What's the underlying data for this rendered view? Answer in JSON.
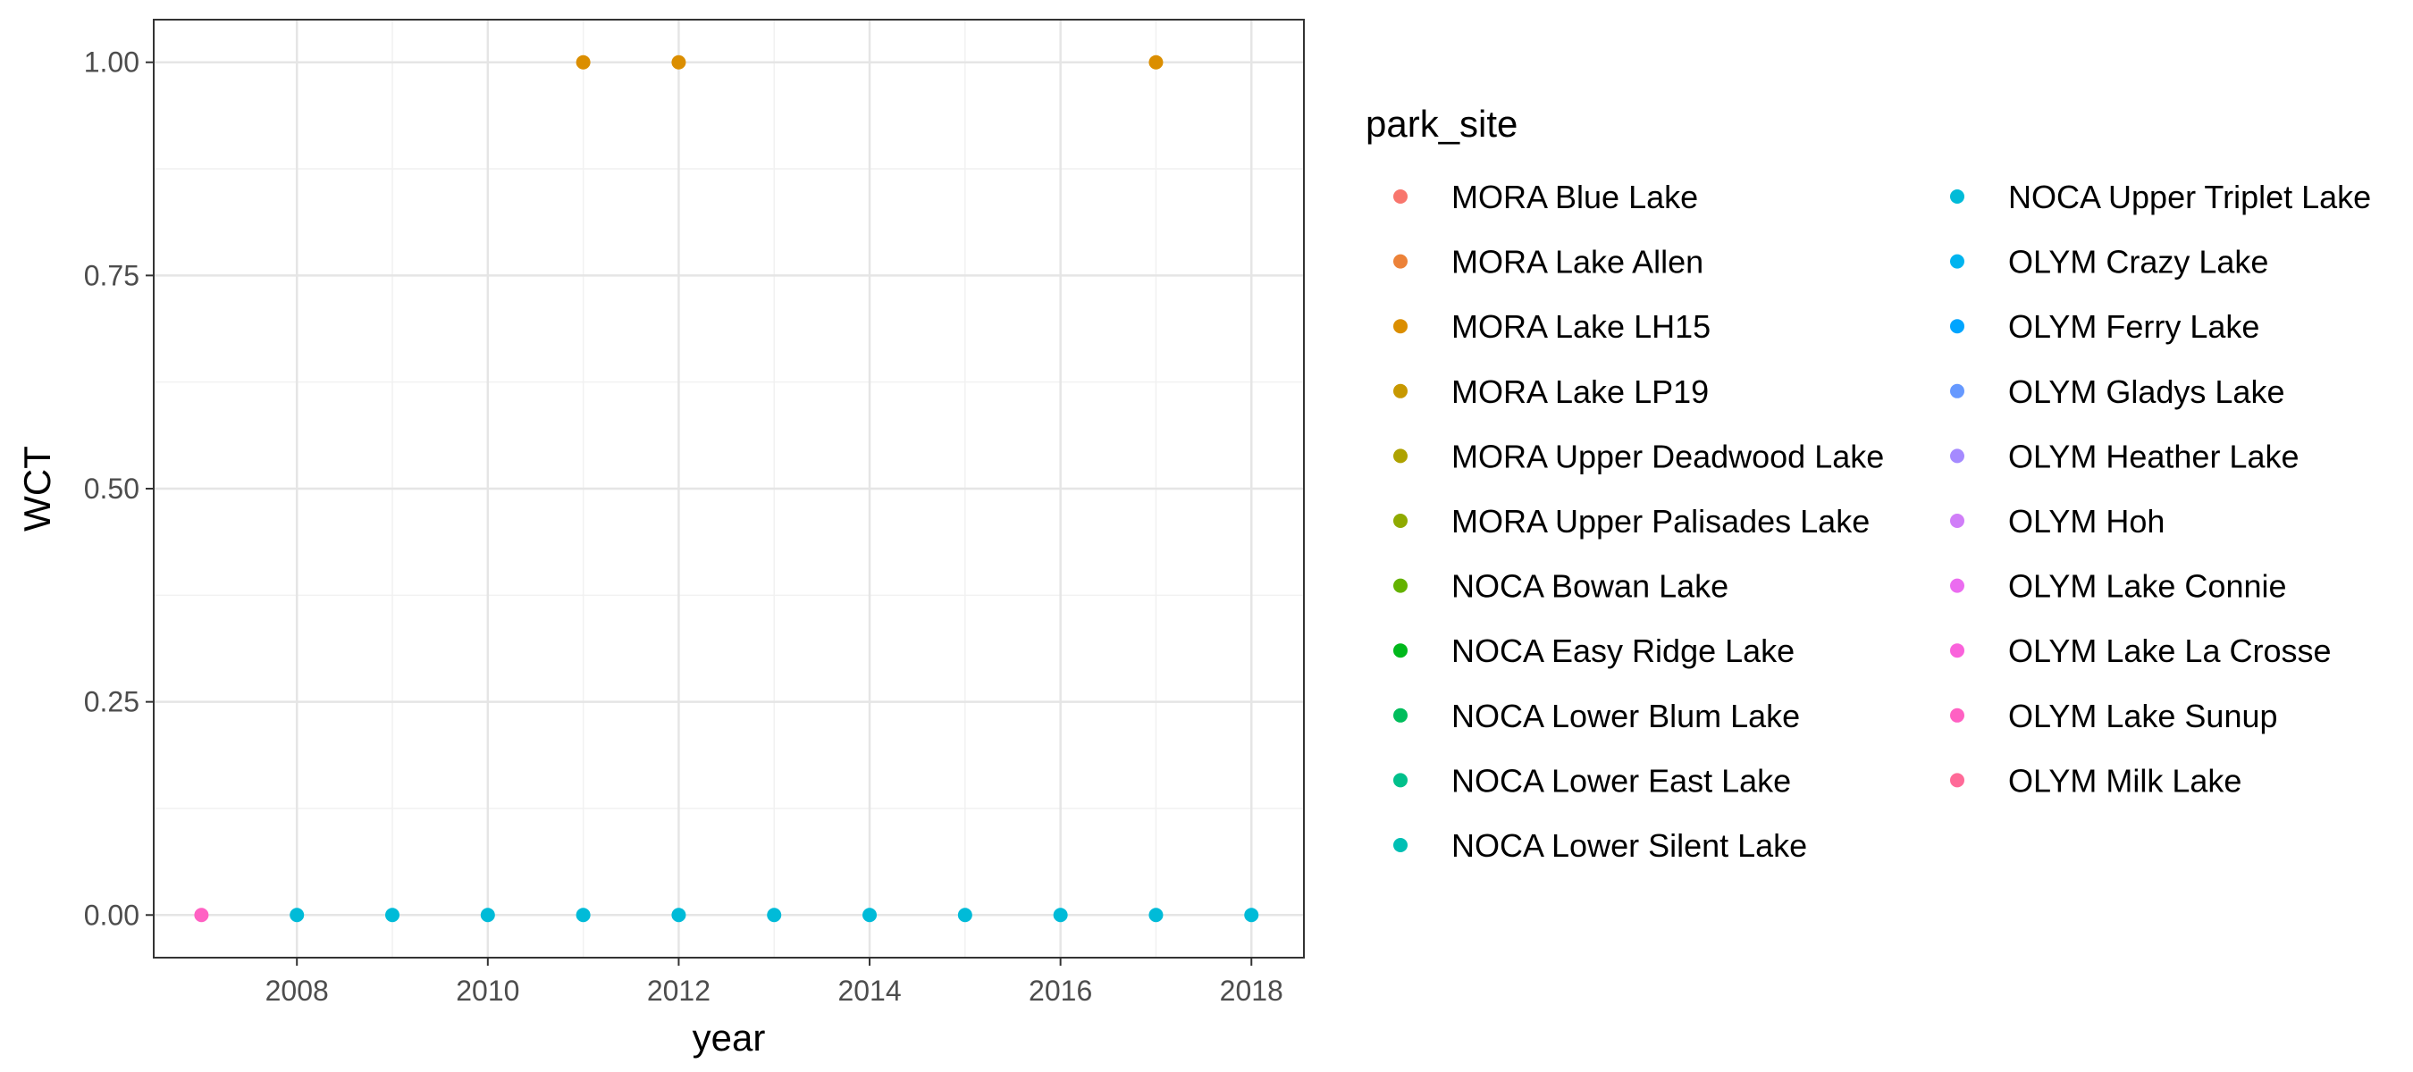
{
  "chart_data": {
    "type": "scatter",
    "title": "",
    "xlabel": "year",
    "ylabel": "WCT",
    "xlim": [
      2006.5,
      2018.55
    ],
    "ylim": [
      -0.05,
      1.05
    ],
    "x_ticks": [
      2008,
      2010,
      2012,
      2014,
      2016,
      2018
    ],
    "x_tick_labels": [
      "2008",
      "2010",
      "2012",
      "2014",
      "2016",
      "2018"
    ],
    "y_ticks": [
      0,
      0.25,
      0.5,
      0.75,
      1
    ],
    "y_tick_labels": [
      "0.00",
      "0.25",
      "0.50",
      "0.75",
      "1.00"
    ],
    "grid": true,
    "legend": {
      "title": "park_site",
      "placement": "right",
      "columns": 2,
      "entries": [
        {
          "label": "MORA Blue Lake",
          "color": "#F8766D"
        },
        {
          "label": "MORA Lake Allen",
          "color": "#EC8239"
        },
        {
          "label": "MORA Lake LH15",
          "color": "#DB8E00"
        },
        {
          "label": "MORA Lake LP19",
          "color": "#C79800"
        },
        {
          "label": "MORA Upper Deadwood Lake",
          "color": "#AEA200"
        },
        {
          "label": "MORA Upper Palisades Lake",
          "color": "#8FAA00"
        },
        {
          "label": "NOCA Bowan Lake",
          "color": "#64B200"
        },
        {
          "label": "NOCA Easy Ridge Lake",
          "color": "#00B81B"
        },
        {
          "label": "NOCA Lower Blum Lake",
          "color": "#00BD5C"
        },
        {
          "label": "NOCA Lower East Lake",
          "color": "#00C08B"
        },
        {
          "label": "NOCA Lower Silent Lake",
          "color": "#00BFB4"
        },
        {
          "label": "NOCA Upper Triplet Lake",
          "color": "#00BBD8"
        },
        {
          "label": "OLYM Crazy Lake",
          "color": "#00B4EF"
        },
        {
          "label": "OLYM Ferry Lake",
          "color": "#00A5FF"
        },
        {
          "label": "OLYM Gladys Lake",
          "color": "#6699FF"
        },
        {
          "label": "OLYM Heather Lake",
          "color": "#A58AFF"
        },
        {
          "label": "OLYM Hoh",
          "color": "#D07EF8"
        },
        {
          "label": "OLYM Lake Connie",
          "color": "#EB6CF0"
        },
        {
          "label": "OLYM Lake La Crosse",
          "color": "#FA62DB"
        },
        {
          "label": "OLYM Lake Sunup",
          "color": "#FF61C3"
        },
        {
          "label": "OLYM Milk Lake",
          "color": "#FF6A98"
        }
      ]
    },
    "points": [
      {
        "x": 2007,
        "y": 0,
        "color": "#FF61C3"
      },
      {
        "x": 2008,
        "y": 0,
        "color": "#00BBD8"
      },
      {
        "x": 2009,
        "y": 0,
        "color": "#00BBD8"
      },
      {
        "x": 2010,
        "y": 0,
        "color": "#00BBD8"
      },
      {
        "x": 2011,
        "y": 0,
        "color": "#00BBD8"
      },
      {
        "x": 2011,
        "y": 1,
        "color": "#DB8E00"
      },
      {
        "x": 2012,
        "y": 0,
        "color": "#00BBD8"
      },
      {
        "x": 2012,
        "y": 1,
        "color": "#DB8E00"
      },
      {
        "x": 2013,
        "y": 0,
        "color": "#00BBD8"
      },
      {
        "x": 2014,
        "y": 0,
        "color": "#00BBD8"
      },
      {
        "x": 2015,
        "y": 0,
        "color": "#00BBD8"
      },
      {
        "x": 2016,
        "y": 0,
        "color": "#00BBD8"
      },
      {
        "x": 2017,
        "y": 0,
        "color": "#00BBD8"
      },
      {
        "x": 2017,
        "y": 1,
        "color": "#DB8E00"
      },
      {
        "x": 2018,
        "y": 0,
        "color": "#00BBD8"
      }
    ]
  }
}
